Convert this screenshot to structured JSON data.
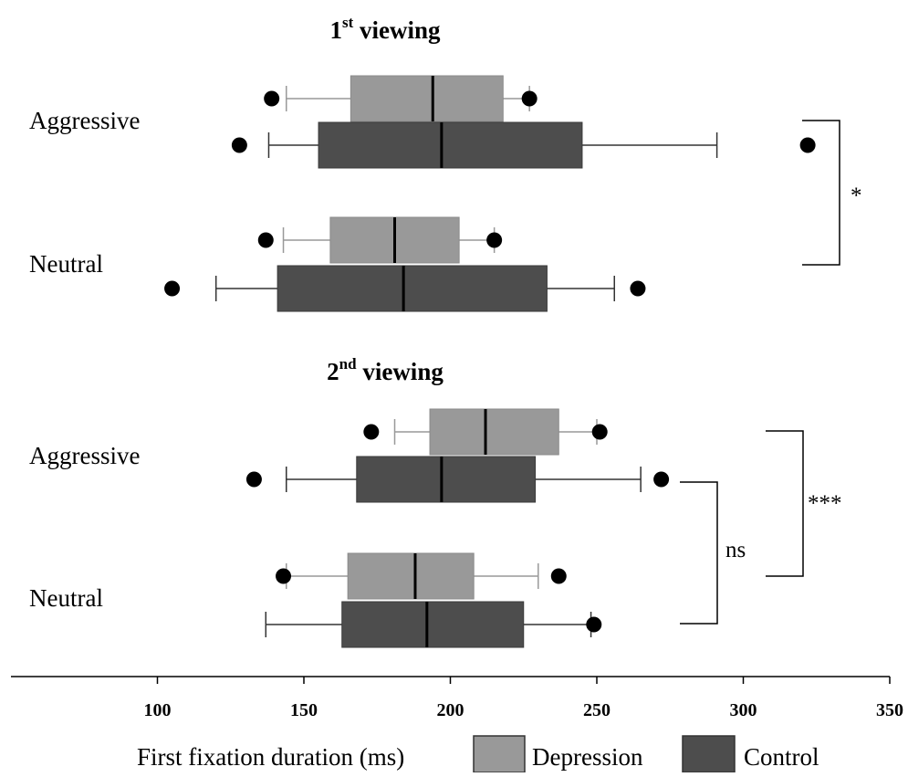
{
  "chart_data": {
    "type": "boxplot",
    "orientation": "horizontal",
    "xlabel": "First fixation duration (ms)",
    "xlim": [
      50,
      350
    ],
    "xticks": [
      100,
      150,
      200,
      250,
      300,
      350
    ],
    "legend": {
      "placement": "bottom",
      "entries": [
        {
          "name": "Depression",
          "color": "#999999"
        },
        {
          "name": "Control",
          "color": "#4d4d4d"
        }
      ]
    },
    "colors": {
      "Depression": "#999999",
      "Control": "#4d4d4d",
      "whisker_depression": "#999999",
      "whisker_control": "#333333",
      "outlier": "#000000"
    },
    "panels": [
      {
        "title_main": "1",
        "title_sup": "st",
        "title_rest": " viewing",
        "categories": [
          {
            "label": "Aggressive",
            "boxes": [
              {
                "group": "Depression",
                "whisker_low": 144,
                "q1": 166,
                "median": 194,
                "q3": 218,
                "whisker_high": 227,
                "outliers": [
                  139,
                  227
                ]
              },
              {
                "group": "Control",
                "whisker_low": 138,
                "q1": 155,
                "median": 197,
                "q3": 245,
                "whisker_high": 291,
                "outliers": [
                  128,
                  322
                ]
              }
            ]
          },
          {
            "label": "Neutral",
            "boxes": [
              {
                "group": "Depression",
                "whisker_low": 143,
                "q1": 159,
                "median": 181,
                "q3": 203,
                "whisker_high": 215,
                "outliers": [
                  137,
                  215
                ]
              },
              {
                "group": "Control",
                "whisker_low": 120,
                "q1": 141,
                "median": 184,
                "q3": 233,
                "whisker_high": 256,
                "outliers": [
                  105,
                  264
                ]
              }
            ]
          }
        ],
        "significance": [
          {
            "label": "*",
            "between": [
              "Aggressive",
              "Neutral"
            ]
          }
        ]
      },
      {
        "title_main": "2",
        "title_sup": "nd",
        "title_rest": " viewing",
        "categories": [
          {
            "label": "Aggressive",
            "boxes": [
              {
                "group": "Depression",
                "whisker_low": 181,
                "q1": 193,
                "median": 212,
                "q3": 237,
                "whisker_high": 250,
                "outliers": [
                  173,
                  251
                ]
              },
              {
                "group": "Control",
                "whisker_low": 144,
                "q1": 168,
                "median": 197,
                "q3": 229,
                "whisker_high": 265,
                "outliers": [
                  133,
                  272
                ]
              }
            ]
          },
          {
            "label": "Neutral",
            "boxes": [
              {
                "group": "Depression",
                "whisker_low": 144,
                "q1": 165,
                "median": 188,
                "q3": 208,
                "whisker_high": 230,
                "outliers": [
                  143,
                  237
                ]
              },
              {
                "group": "Control",
                "whisker_low": 137,
                "q1": 163,
                "median": 192,
                "q3": 225,
                "whisker_high": 248,
                "outliers": [
                  249
                ]
              }
            ]
          }
        ],
        "significance": [
          {
            "label": "ns",
            "between": [
              "Aggressive Control",
              "Neutral Control"
            ]
          },
          {
            "label": "***",
            "between": [
              "Aggressive",
              "Neutral"
            ]
          }
        ]
      }
    ]
  }
}
